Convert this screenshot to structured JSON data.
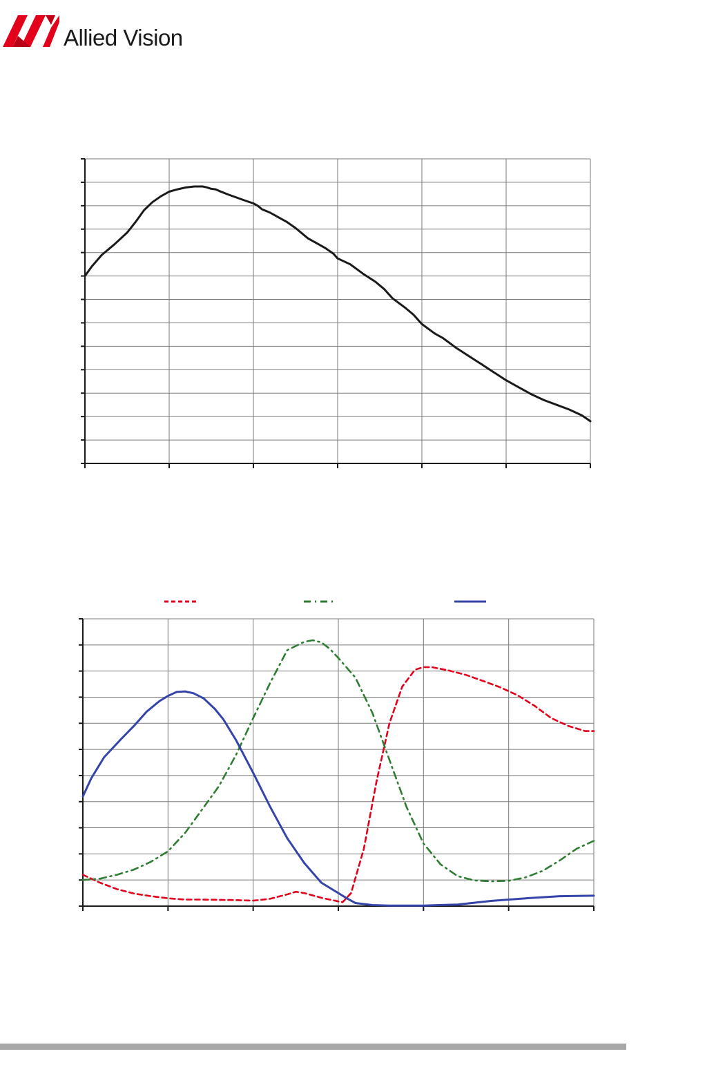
{
  "brand": {
    "logo_text": "Allied Vision",
    "logo_color": "#e3001b"
  },
  "colors": {
    "grid": "#7a7a7a",
    "axis": "#1a1a1a",
    "mono": "#1a1a1a",
    "red": "#e3001b",
    "green": "#2e7d32",
    "blue": "#3444a8",
    "footer": "#a8a8a8"
  },
  "chart_data": [
    {
      "type": "line",
      "title": "",
      "xlabel": "",
      "ylabel": "",
      "xlim": [
        0,
        6
      ],
      "ylim": [
        0,
        13
      ],
      "grid": true,
      "x_divisions": 6,
      "y_divisions": 13,
      "series": [
        {
          "style": "solid",
          "x": [
            0,
            0.08,
            0.2,
            0.35,
            0.5,
            0.6,
            0.7,
            0.8,
            0.9,
            1.0,
            1.1,
            1.2,
            1.3,
            1.4,
            1.45,
            1.5,
            1.55,
            1.6,
            1.7,
            1.8,
            1.9,
            2.0,
            2.05,
            2.1,
            2.2,
            2.3,
            2.4,
            2.5,
            2.6,
            2.65,
            2.75,
            2.85,
            2.95,
            3.0,
            3.15,
            3.3,
            3.45,
            3.55,
            3.65,
            3.8,
            3.9,
            4.0,
            4.15,
            4.25,
            4.4,
            4.55,
            4.7,
            4.85,
            5.0,
            5.15,
            5.3,
            5.45,
            5.6,
            5.75,
            5.9,
            6.0
          ],
          "y": [
            8.0,
            8.4,
            8.9,
            9.35,
            9.85,
            10.3,
            10.8,
            11.15,
            11.4,
            11.6,
            11.7,
            11.78,
            11.82,
            11.82,
            11.78,
            11.72,
            11.7,
            11.62,
            11.48,
            11.35,
            11.22,
            11.1,
            11.0,
            10.85,
            10.7,
            10.5,
            10.3,
            10.05,
            9.75,
            9.6,
            9.4,
            9.2,
            8.95,
            8.75,
            8.5,
            8.1,
            7.75,
            7.45,
            7.05,
            6.65,
            6.35,
            5.95,
            5.55,
            5.35,
            4.95,
            4.6,
            4.25,
            3.9,
            3.55,
            3.25,
            2.95,
            2.7,
            2.5,
            2.3,
            2.05,
            1.8
          ]
        }
      ]
    },
    {
      "type": "line",
      "title": "",
      "xlabel": "",
      "ylabel": "",
      "xlim": [
        0,
        6
      ],
      "ylim": [
        0,
        11
      ],
      "grid": true,
      "x_divisions": 6,
      "y_divisions": 11,
      "legend": "top",
      "series": [
        {
          "color_key": "red",
          "style": "dashed",
          "x": [
            0,
            0.2,
            0.4,
            0.6,
            0.8,
            1.0,
            1.2,
            1.4,
            1.6,
            1.8,
            2.0,
            2.2,
            2.4,
            2.5,
            2.6,
            2.8,
            3.0,
            3.05,
            3.15,
            3.3,
            3.45,
            3.6,
            3.75,
            3.9,
            4.0,
            4.1,
            4.3,
            4.5,
            4.7,
            4.9,
            5.1,
            5.3,
            5.5,
            5.7,
            5.9,
            6.0
          ],
          "y": [
            1.2,
            0.9,
            0.65,
            0.48,
            0.38,
            0.3,
            0.25,
            0.25,
            0.24,
            0.23,
            0.21,
            0.28,
            0.45,
            0.55,
            0.5,
            0.32,
            0.18,
            0.15,
            0.5,
            2.2,
            4.8,
            7.0,
            8.4,
            9.05,
            9.15,
            9.15,
            9.02,
            8.85,
            8.62,
            8.38,
            8.08,
            7.68,
            7.2,
            6.9,
            6.7,
            6.7
          ]
        },
        {
          "color_key": "green",
          "style": "dashdot",
          "x": [
            0,
            0.2,
            0.4,
            0.6,
            0.8,
            1.0,
            1.2,
            1.4,
            1.6,
            1.8,
            2.0,
            2.2,
            2.4,
            2.6,
            2.7,
            2.8,
            2.9,
            3.0,
            3.2,
            3.4,
            3.6,
            3.8,
            4.0,
            4.2,
            4.4,
            4.6,
            4.8,
            5.0,
            5.2,
            5.4,
            5.6,
            5.8,
            6.0
          ],
          "y": [
            1.0,
            1.05,
            1.2,
            1.4,
            1.7,
            2.1,
            2.8,
            3.7,
            4.6,
            5.8,
            7.2,
            8.55,
            9.8,
            10.12,
            10.18,
            10.1,
            9.85,
            9.5,
            8.75,
            7.4,
            5.6,
            3.8,
            2.4,
            1.6,
            1.15,
            0.98,
            0.95,
            0.97,
            1.1,
            1.35,
            1.75,
            2.2,
            2.5
          ]
        },
        {
          "color_key": "blue",
          "style": "solid",
          "x": [
            0,
            0.1,
            0.25,
            0.45,
            0.6,
            0.75,
            0.9,
            1.0,
            1.1,
            1.2,
            1.3,
            1.42,
            1.55,
            1.65,
            1.8,
            2.0,
            2.2,
            2.4,
            2.6,
            2.8,
            3.0,
            3.1,
            3.2,
            3.4,
            3.6,
            4.0,
            4.4,
            4.8,
            5.2,
            5.6,
            6.0
          ],
          "y": [
            4.2,
            4.9,
            5.7,
            6.4,
            6.9,
            7.45,
            7.85,
            8.05,
            8.2,
            8.22,
            8.15,
            7.95,
            7.55,
            7.15,
            6.35,
            5.1,
            3.8,
            2.6,
            1.65,
            0.9,
            0.5,
            0.3,
            0.12,
            0.04,
            0.02,
            0.02,
            0.06,
            0.2,
            0.3,
            0.38,
            0.4
          ]
        }
      ]
    }
  ]
}
